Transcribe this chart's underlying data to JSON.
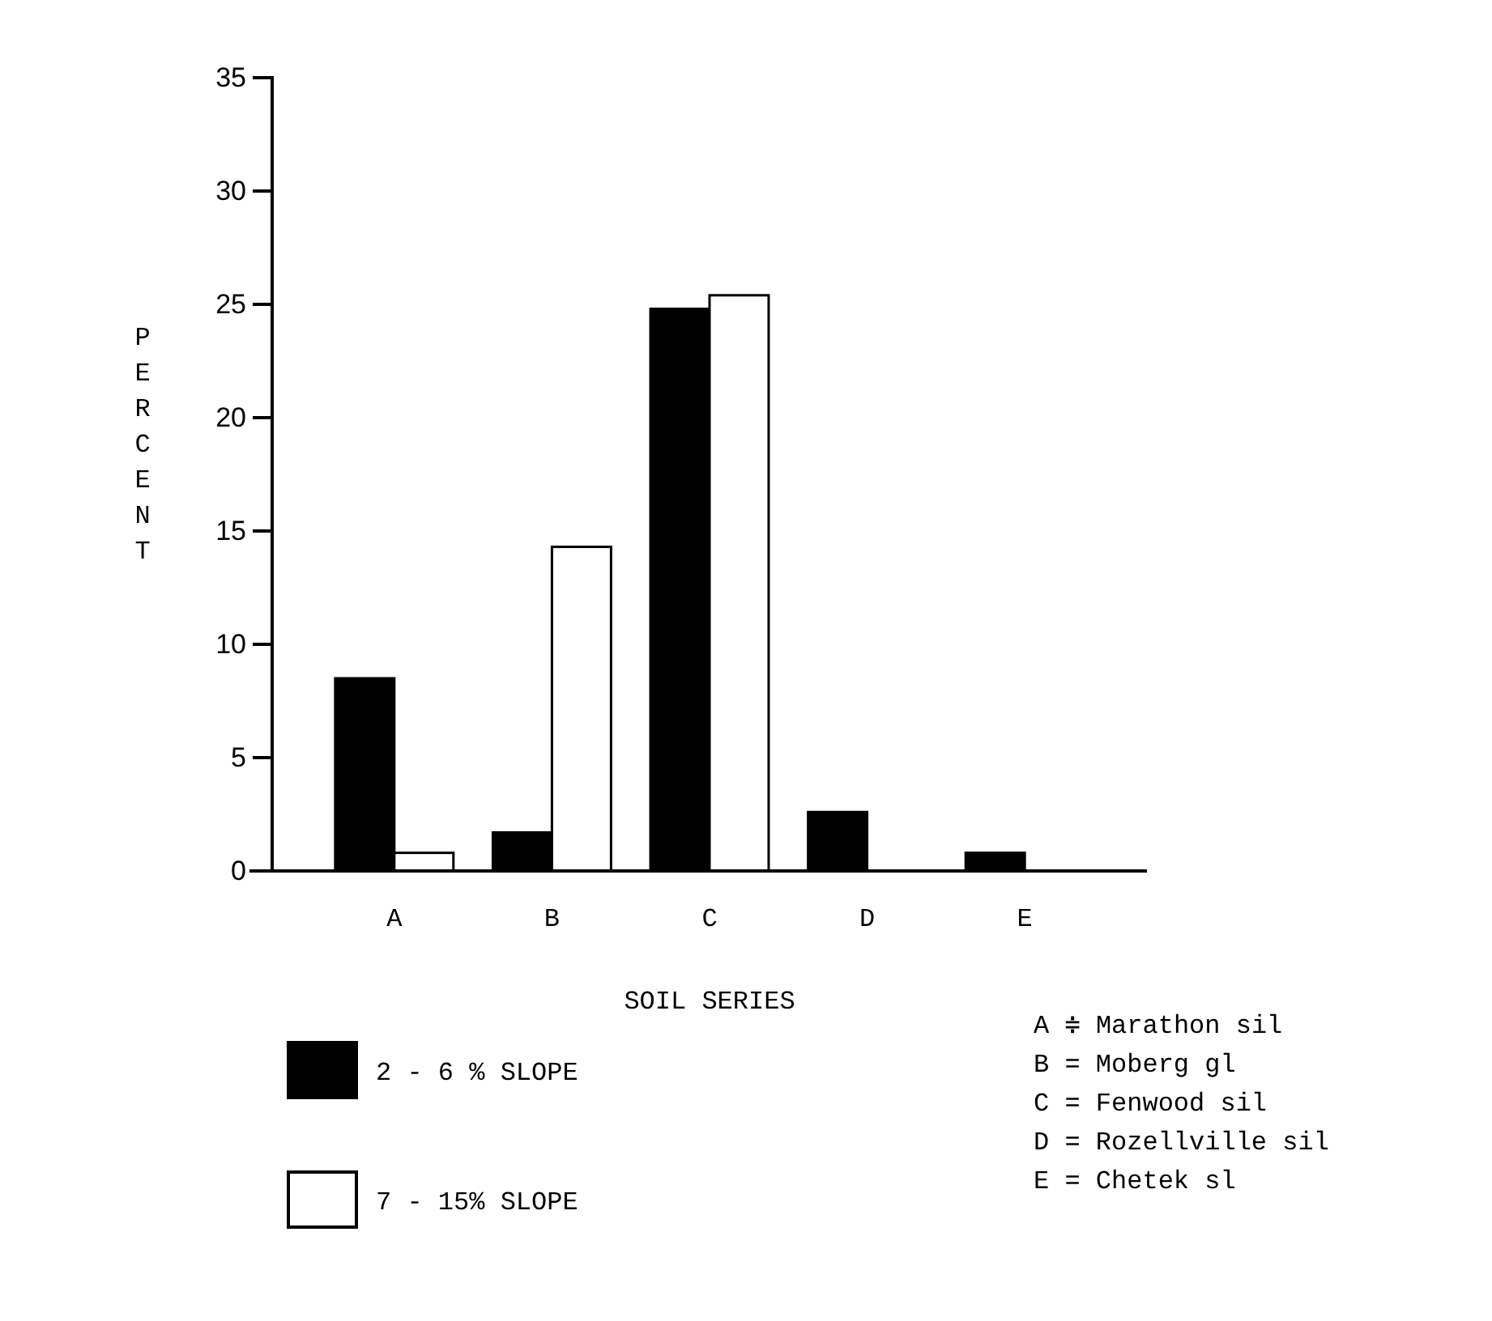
{
  "chart_data": {
    "type": "bar",
    "xlabel": "SOIL SERIES",
    "ylabel": "PERCENT",
    "categories": [
      "A",
      "B",
      "C",
      "D",
      "E"
    ],
    "series": [
      {
        "name": "2 - 6 % SLOPE",
        "color": "#000000",
        "values": [
          8.5,
          1.7,
          24.8,
          2.6,
          0.8
        ]
      },
      {
        "name": "7 - 15% SLOPE",
        "color": "#ffffff",
        "values": [
          0.8,
          14.3,
          25.4,
          null,
          null
        ]
      }
    ],
    "ylim": [
      0,
      35
    ],
    "yticks": [
      0,
      5,
      10,
      15,
      20,
      25,
      30,
      35
    ],
    "legend": "bottom left",
    "annotations": [
      "A ≑ Marathon sil",
      "B = Moberg gl",
      "C = Fenwood sil",
      "D = Rozellville sil",
      "E = Chetek sl"
    ]
  }
}
